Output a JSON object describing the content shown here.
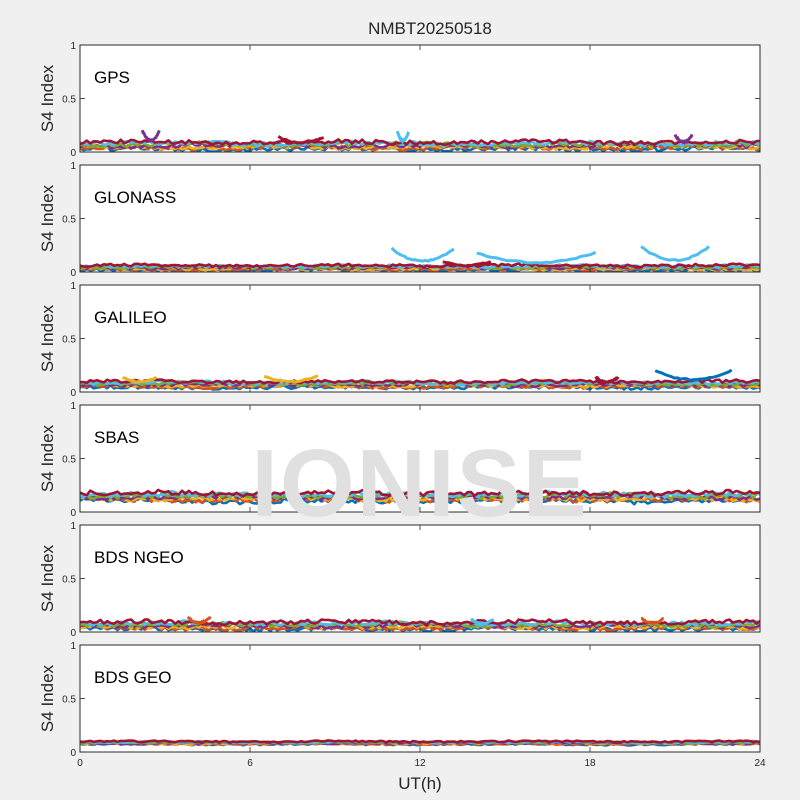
{
  "chart_data": {
    "type": "line",
    "title": "NMBT20250518",
    "xlabel": "UT(h)",
    "ylabel": "S4 Index",
    "xlim": [
      0,
      24
    ],
    "ylim": [
      0,
      1
    ],
    "x_ticks": [
      "0",
      "6",
      "12",
      "18",
      "24"
    ],
    "y_ticks": [
      "0",
      "0.5",
      "1"
    ],
    "watermark": "IONISE",
    "series_colors": [
      "#0072BD",
      "#D95319",
      "#EDB120",
      "#7E2F8E",
      "#77AC30",
      "#4DBEEE",
      "#A2142F"
    ],
    "panels": [
      {
        "label": "GPS",
        "baseline": 0.06,
        "noise": 0.03,
        "excursions": [
          {
            "t0": 2.2,
            "t1": 2.8,
            "peak": 0.2,
            "c": 3
          },
          {
            "t0": 7.0,
            "t1": 8.6,
            "peak": 0.14,
            "c": 6
          },
          {
            "t0": 11.2,
            "t1": 11.6,
            "peak": 0.19,
            "c": 5
          },
          {
            "t0": 21.0,
            "t1": 21.6,
            "peak": 0.16,
            "c": 3
          }
        ]
      },
      {
        "label": "GLONASS",
        "baseline": 0.04,
        "noise": 0.02,
        "excursions": [
          {
            "t0": 11.0,
            "t1": 13.2,
            "peak": 0.22,
            "c": 5
          },
          {
            "t0": 14.0,
            "t1": 18.2,
            "peak": 0.18,
            "c": 5
          },
          {
            "t0": 19.8,
            "t1": 22.2,
            "peak": 0.24,
            "c": 5
          },
          {
            "t0": 12.8,
            "t1": 14.5,
            "peak": 0.1,
            "c": 6
          }
        ]
      },
      {
        "label": "GALILEO",
        "baseline": 0.07,
        "noise": 0.025,
        "excursions": [
          {
            "t0": 1.5,
            "t1": 2.7,
            "peak": 0.14,
            "c": 2
          },
          {
            "t0": 6.5,
            "t1": 8.4,
            "peak": 0.15,
            "c": 2
          },
          {
            "t0": 18.2,
            "t1": 19.0,
            "peak": 0.14,
            "c": 6
          },
          {
            "t0": 20.3,
            "t1": 23.0,
            "peak": 0.2,
            "c": 0
          }
        ]
      },
      {
        "label": "SBAS",
        "baseline": 0.14,
        "noise": 0.035,
        "excursions": []
      },
      {
        "label": "BDS NGEO",
        "baseline": 0.06,
        "noise": 0.03,
        "excursions": [
          {
            "t0": 3.8,
            "t1": 4.6,
            "peak": 0.14,
            "c": 1
          },
          {
            "t0": 13.8,
            "t1": 14.6,
            "peak": 0.12,
            "c": 5
          },
          {
            "t0": 19.8,
            "t1": 20.6,
            "peak": 0.13,
            "c": 1
          }
        ]
      },
      {
        "label": "BDS GEO",
        "baseline": 0.085,
        "noise": 0.012,
        "excursions": []
      }
    ]
  }
}
